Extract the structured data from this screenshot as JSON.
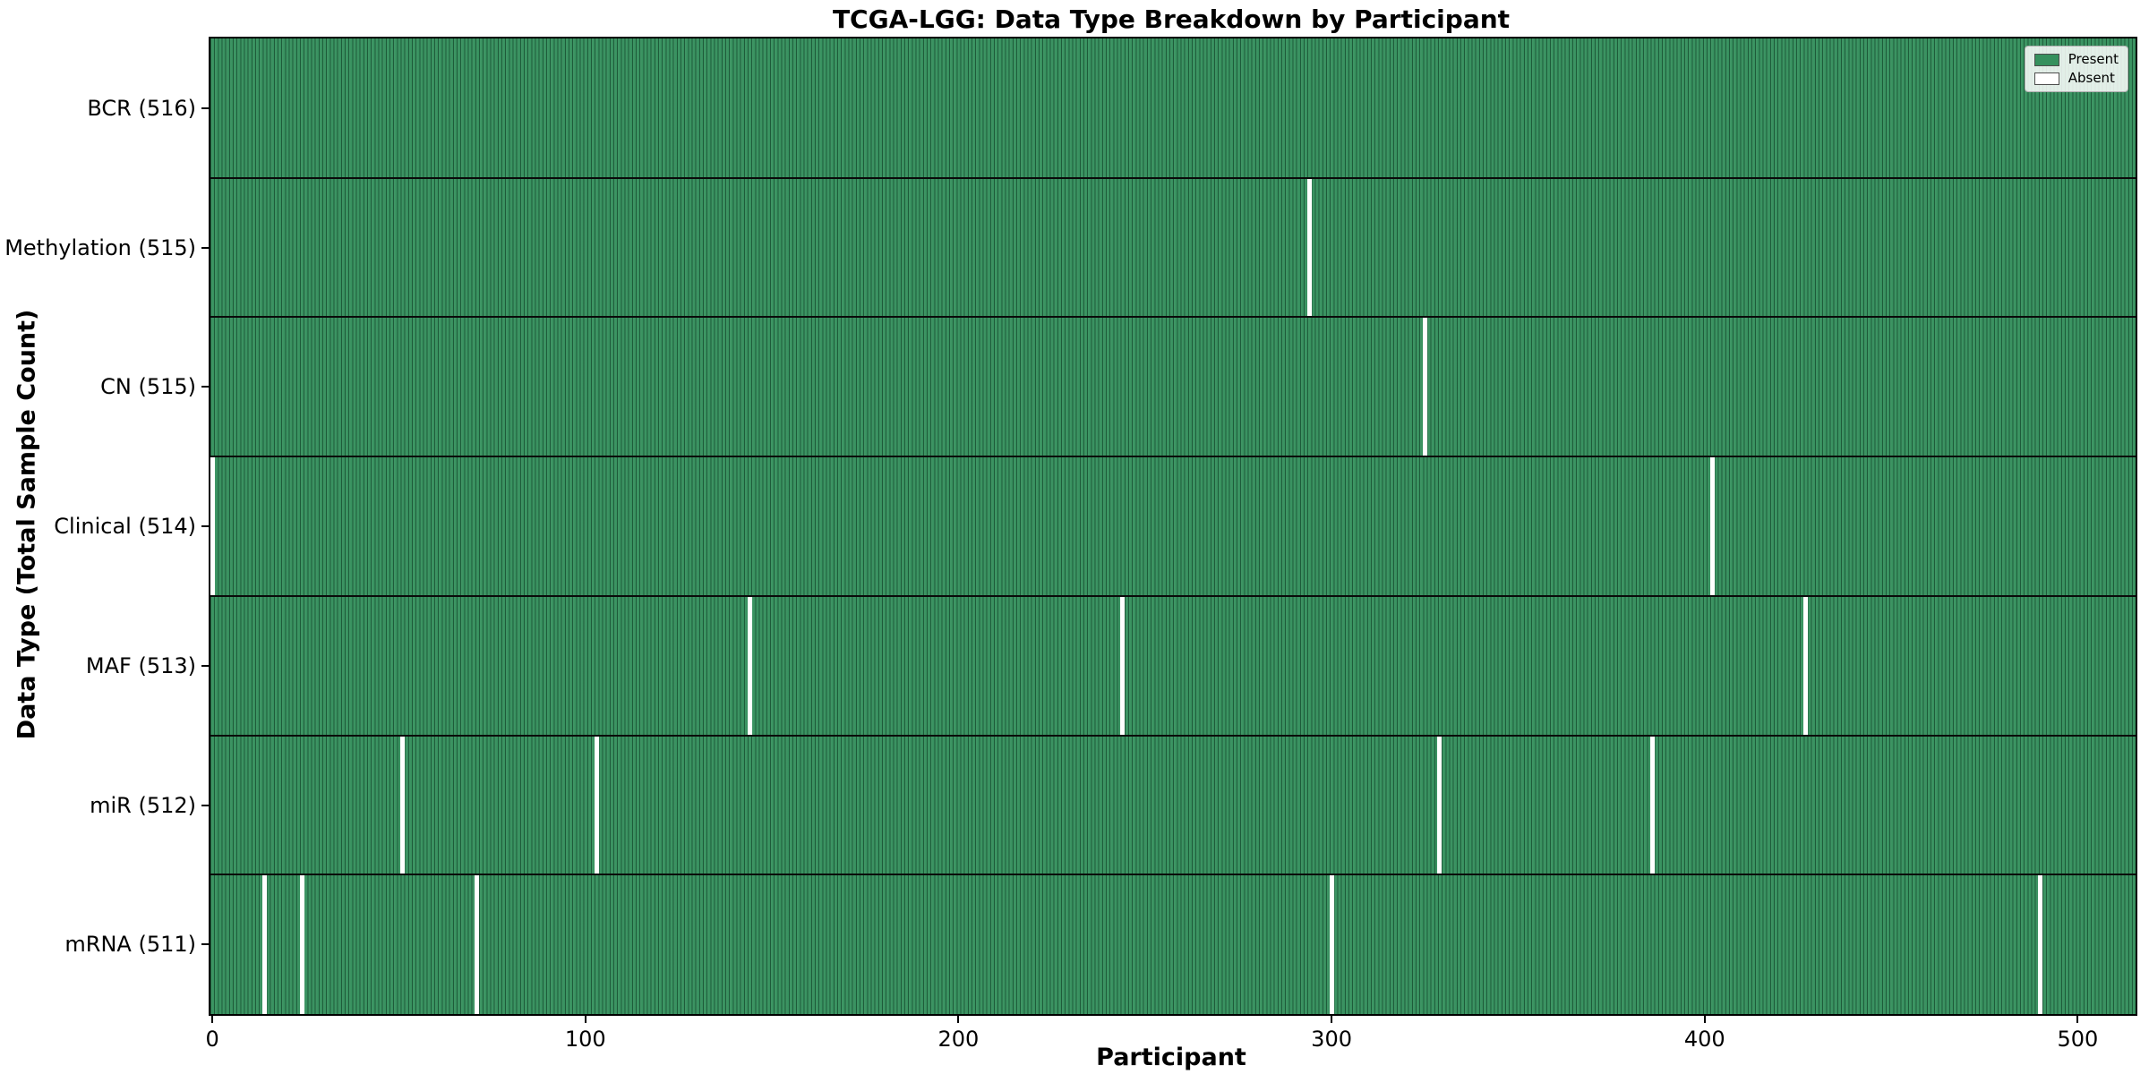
{
  "chart_data": {
    "type": "heatmap",
    "title": "TCGA-LGG: Data Type Breakdown by Participant",
    "xlabel": "Participant",
    "ylabel": "Data Type (Total Sample Count)",
    "n_participants": 516,
    "x_ticks": [
      0,
      100,
      200,
      300,
      400,
      500
    ],
    "xlim": [
      -0.5,
      515.5
    ],
    "grid": false,
    "legend_position": "upper right",
    "colors": {
      "present": "#35905d",
      "absent": "#ffffff",
      "bar_edge": "#0c301e",
      "row_separator": "#0a0a0a"
    },
    "legend": [
      {
        "label": "Present",
        "color": "#35905d"
      },
      {
        "label": "Absent",
        "color": "#ffffff"
      }
    ],
    "rows": [
      {
        "label": "BCR (516)",
        "data_type": "BCR",
        "present_count": 516,
        "absent_participants": []
      },
      {
        "label": "Methylation (515)",
        "data_type": "Methylation",
        "present_count": 515,
        "absent_participants": [
          294
        ]
      },
      {
        "label": "CN (515)",
        "data_type": "CN",
        "present_count": 515,
        "absent_participants": [
          325
        ]
      },
      {
        "label": "Clinical (514)",
        "data_type": "Clinical",
        "present_count": 514,
        "absent_participants": [
          0,
          402
        ]
      },
      {
        "label": "MAF (513)",
        "data_type": "MAF",
        "present_count": 513,
        "absent_participants": [
          144,
          244,
          427
        ]
      },
      {
        "label": "miR (512)",
        "data_type": "miR",
        "present_count": 512,
        "absent_participants": [
          51,
          103,
          329,
          386
        ]
      },
      {
        "label": "mRNA (511)",
        "data_type": "mRNA",
        "present_count": 511,
        "absent_participants": [
          14,
          24,
          71,
          300,
          490
        ]
      }
    ]
  }
}
